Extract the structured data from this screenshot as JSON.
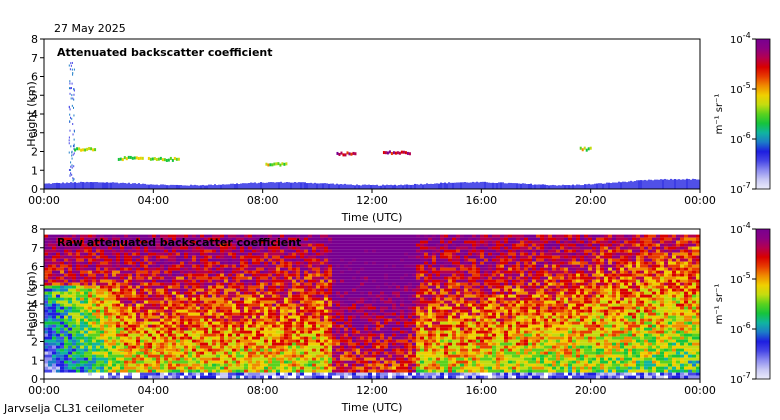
{
  "date": "27 May 2025",
  "footer": "Jarvselja CL31 ceilometer",
  "colorbar": {
    "unit_label": "m⁻¹ sr⁻¹",
    "ticks": [
      {
        "base": "10",
        "exp": "-4"
      },
      {
        "base": "10",
        "exp": "-5"
      },
      {
        "base": "10",
        "exp": "-6"
      },
      {
        "base": "10",
        "exp": "-7"
      }
    ],
    "range": [
      1e-07,
      0.0001
    ],
    "colors": [
      "#ececfa",
      "#c8c8f4",
      "#8c8cf0",
      "#4646e6",
      "#1e1ee0",
      "#1c7cc8",
      "#10b4a0",
      "#16c43c",
      "#5ad21e",
      "#c4dc10",
      "#f0d000",
      "#f08c00",
      "#e83c00",
      "#d80000",
      "#b40050",
      "#8c0082",
      "#780090"
    ]
  },
  "chart_data": [
    {
      "type": "heatmap",
      "title": "Attenuated backscatter coefficient",
      "xlabel": "Time (UTC)",
      "ylabel": "Height (km)",
      "xlim": [
        "00:00",
        "24:00"
      ],
      "ylim": [
        0,
        8
      ],
      "x_ticks": [
        "00:00",
        "04:00",
        "08:00",
        "12:00",
        "16:00",
        "20:00",
        "00:00"
      ],
      "y_ticks": [
        "0",
        "1",
        "2",
        "3",
        "4",
        "5",
        "6",
        "7",
        "8"
      ],
      "features": [
        {
          "kind": "boundary_layer",
          "time_h": [
            0,
            24
          ],
          "height_km": [
            0,
            0.4
          ],
          "level": "1e-6"
        },
        {
          "kind": "cloud",
          "time_h": [
            1.1,
            1.9
          ],
          "height_km": 2.1,
          "level": "1e-5"
        },
        {
          "kind": "cloud",
          "time_h": [
            2.7,
            3.6
          ],
          "height_km": 1.6,
          "level": "1e-5"
        },
        {
          "kind": "cloud",
          "time_h": [
            3.8,
            4.9
          ],
          "height_km": 1.55,
          "level": "1e-5"
        },
        {
          "kind": "cloud",
          "time_h": [
            8.1,
            8.9
          ],
          "height_km": 1.3,
          "level": "1e-5"
        },
        {
          "kind": "cloud",
          "time_h": [
            10.7,
            11.4
          ],
          "height_km": 1.85,
          "level": "1e-4"
        },
        {
          "kind": "cloud",
          "time_h": [
            12.4,
            13.4
          ],
          "height_km": 1.9,
          "level": "1e-4"
        },
        {
          "kind": "cloud",
          "time_h": [
            19.6,
            20.0
          ],
          "height_km": 2.1,
          "level": "1e-5"
        },
        {
          "kind": "rain_streak",
          "time_h": [
            0.9,
            1.1
          ],
          "height_km": [
            0.5,
            7.2
          ],
          "level": "1e-6"
        }
      ]
    },
    {
      "type": "heatmap",
      "title": "Raw attenuated backscatter coefficient",
      "xlabel": "Time (UTC)",
      "ylabel": "Height (km)",
      "xlim": [
        "00:00",
        "24:00"
      ],
      "ylim": [
        0,
        8
      ],
      "x_ticks": [
        "00:00",
        "04:00",
        "08:00",
        "12:00",
        "16:00",
        "20:00",
        "00:00"
      ],
      "y_ticks": [
        "0",
        "1",
        "2",
        "3",
        "4",
        "5",
        "6",
        "7",
        "8"
      ],
      "features": [
        {
          "kind": "background_noise",
          "time_h": [
            0,
            24
          ],
          "height_km": [
            0.5,
            7.7
          ],
          "level_peak": "1e-4",
          "peak_time_h": [
            10.5,
            13.5
          ]
        },
        {
          "kind": "low_signal",
          "time_h": [
            0,
            3.0
          ],
          "height_km": [
            0,
            5.0
          ],
          "level": "1e-7"
        },
        {
          "kind": "cloud",
          "time_h": [
            2.7,
            4.9
          ],
          "height_km": 1.55,
          "level": "1e-5"
        }
      ]
    }
  ]
}
